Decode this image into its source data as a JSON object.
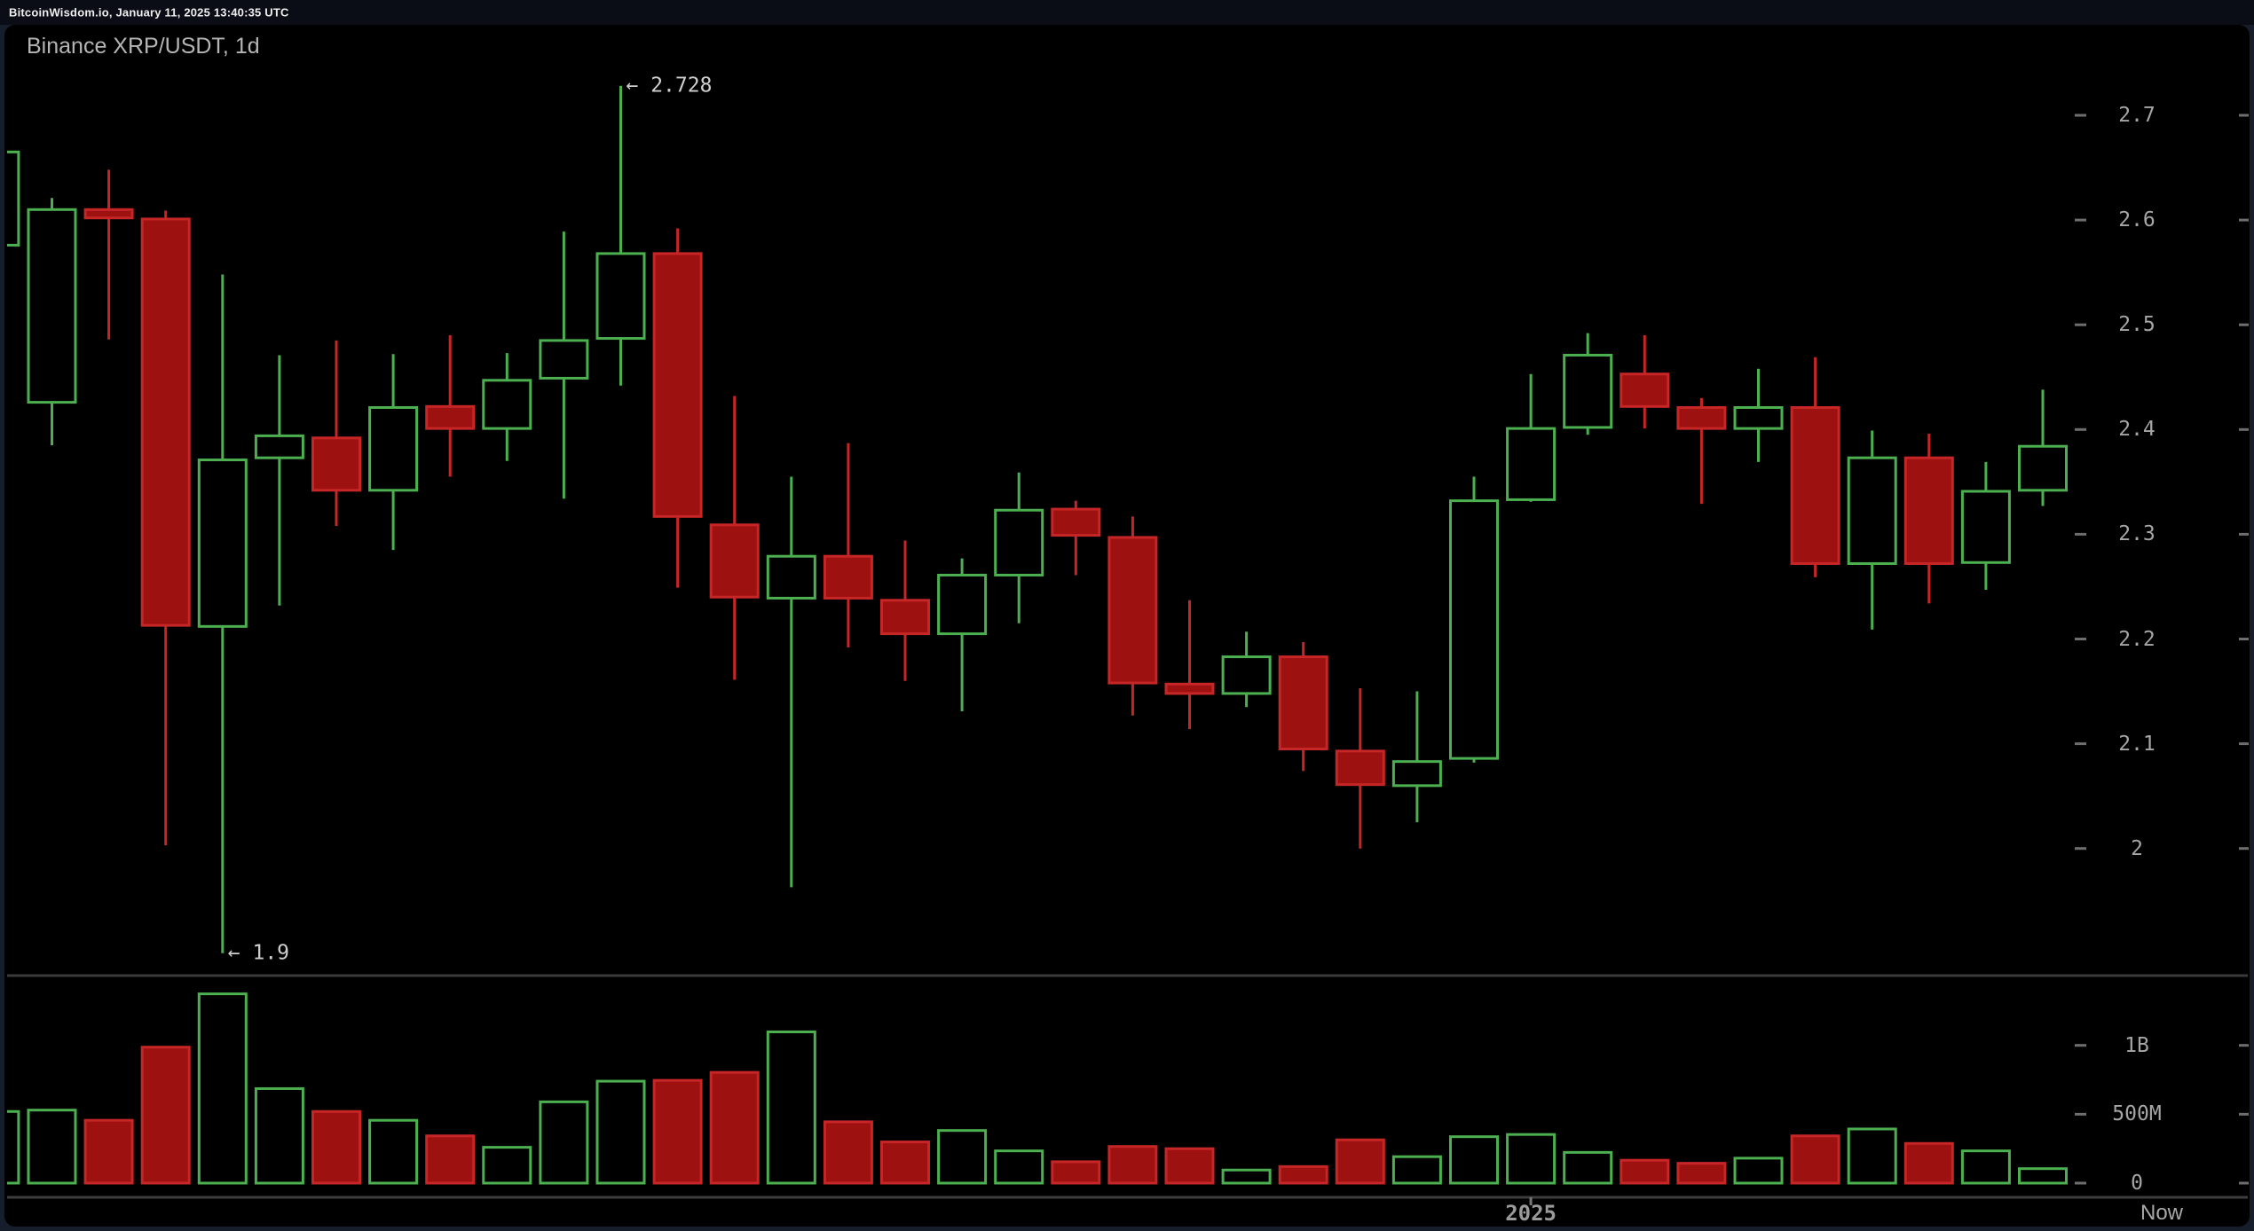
{
  "header": {
    "text": "BitcoinWisdom.io, January 11, 2025 13:40:35 UTC"
  },
  "chart_data": {
    "type": "candlestick",
    "title": "Binance XRP/USDT, 1d",
    "exchange": "Binance",
    "pair": "XRP/USDT",
    "interval": "1d",
    "legend_position": "none",
    "grid": false,
    "colors": {
      "up_stroke": "#4caf50",
      "down_fill": "#9e1111",
      "down_stroke": "#c62626",
      "background": "#000000",
      "axis_text": "#a6a6a6",
      "annotation_text": "#cfcfcf",
      "divider": "#3a3a3a"
    },
    "y_axis_price": {
      "ticks": [
        2.7,
        2.6,
        2.5,
        2.4,
        2.3,
        2.2,
        2.1,
        2
      ],
      "labels": [
        "2.7",
        "2.6",
        "2.5",
        "2.4",
        "2.3",
        "2.2",
        "2.1",
        "2"
      ],
      "range_shown": [
        1.86,
        2.78
      ]
    },
    "y_axis_volume": {
      "labels": [
        "1B",
        "500M",
        "0"
      ],
      "values_millions": [
        1000,
        500,
        0
      ]
    },
    "x_axis": {
      "year_label": "2025",
      "now_label": "Now",
      "year_tick_candle_index": 27
    },
    "annotations": [
      {
        "text": "← 2.728",
        "price": 2.728,
        "kind": "high"
      },
      {
        "text": "← 1.9",
        "price": 1.9,
        "kind": "low"
      }
    ],
    "volume_unit": "millions",
    "candles": [
      {
        "i": -1,
        "o": 2.576,
        "h": 2.67,
        "l": 2.522,
        "c": 2.665,
        "v": 520,
        "up": true
      },
      {
        "i": 0,
        "o": 2.426,
        "h": 2.621,
        "l": 2.385,
        "c": 2.61,
        "v": 530,
        "up": true
      },
      {
        "i": 1,
        "o": 2.61,
        "h": 2.648,
        "l": 2.486,
        "c": 2.602,
        "v": 456,
        "up": false
      },
      {
        "i": 2,
        "o": 2.601,
        "h": 2.609,
        "l": 2.003,
        "c": 2.213,
        "v": 987,
        "up": false
      },
      {
        "i": 3,
        "o": 2.212,
        "h": 2.548,
        "l": 1.9,
        "c": 2.371,
        "v": 1374,
        "up": true
      },
      {
        "i": 4,
        "o": 2.373,
        "h": 2.471,
        "l": 2.232,
        "c": 2.394,
        "v": 686,
        "up": true
      },
      {
        "i": 5,
        "o": 2.392,
        "h": 2.485,
        "l": 2.308,
        "c": 2.342,
        "v": 520,
        "up": false
      },
      {
        "i": 6,
        "o": 2.342,
        "h": 2.472,
        "l": 2.285,
        "c": 2.421,
        "v": 456,
        "up": true
      },
      {
        "i": 7,
        "o": 2.422,
        "h": 2.49,
        "l": 2.355,
        "c": 2.401,
        "v": 343,
        "up": false
      },
      {
        "i": 8,
        "o": 2.401,
        "h": 2.473,
        "l": 2.37,
        "c": 2.447,
        "v": 260,
        "up": true
      },
      {
        "i": 9,
        "o": 2.449,
        "h": 2.589,
        "l": 2.334,
        "c": 2.485,
        "v": 590,
        "up": true
      },
      {
        "i": 10,
        "o": 2.487,
        "h": 2.728,
        "l": 2.442,
        "c": 2.568,
        "v": 740,
        "up": true
      },
      {
        "i": 11,
        "o": 2.568,
        "h": 2.592,
        "l": 2.249,
        "c": 2.317,
        "v": 746,
        "up": false
      },
      {
        "i": 12,
        "o": 2.309,
        "h": 2.432,
        "l": 2.161,
        "c": 2.24,
        "v": 804,
        "up": false
      },
      {
        "i": 13,
        "o": 2.239,
        "h": 2.355,
        "l": 1.963,
        "c": 2.279,
        "v": 1098,
        "up": true
      },
      {
        "i": 14,
        "o": 2.279,
        "h": 2.387,
        "l": 2.192,
        "c": 2.239,
        "v": 445,
        "up": false
      },
      {
        "i": 15,
        "o": 2.237,
        "h": 2.294,
        "l": 2.16,
        "c": 2.205,
        "v": 299,
        "up": false
      },
      {
        "i": 16,
        "o": 2.205,
        "h": 2.277,
        "l": 2.131,
        "c": 2.261,
        "v": 382,
        "up": true
      },
      {
        "i": 17,
        "o": 2.261,
        "h": 2.359,
        "l": 2.215,
        "c": 2.323,
        "v": 234,
        "up": true
      },
      {
        "i": 18,
        "o": 2.324,
        "h": 2.332,
        "l": 2.261,
        "c": 2.299,
        "v": 155,
        "up": false
      },
      {
        "i": 19,
        "o": 2.297,
        "h": 2.317,
        "l": 2.127,
        "c": 2.158,
        "v": 266,
        "up": false
      },
      {
        "i": 20,
        "o": 2.157,
        "h": 2.237,
        "l": 2.114,
        "c": 2.148,
        "v": 250,
        "up": false
      },
      {
        "i": 21,
        "o": 2.148,
        "h": 2.207,
        "l": 2.135,
        "c": 2.183,
        "v": 95,
        "up": true
      },
      {
        "i": 22,
        "o": 2.183,
        "h": 2.197,
        "l": 2.074,
        "c": 2.095,
        "v": 120,
        "up": false
      },
      {
        "i": 23,
        "o": 2.093,
        "h": 2.153,
        "l": 2.0,
        "c": 2.061,
        "v": 314,
        "up": false
      },
      {
        "i": 24,
        "o": 2.06,
        "h": 2.15,
        "l": 2.025,
        "c": 2.083,
        "v": 192,
        "up": true
      },
      {
        "i": 25,
        "o": 2.086,
        "h": 2.355,
        "l": 2.082,
        "c": 2.332,
        "v": 337,
        "up": true
      },
      {
        "i": 26,
        "o": 2.333,
        "h": 2.453,
        "l": 2.331,
        "c": 2.401,
        "v": 353,
        "up": true
      },
      {
        "i": 27,
        "o": 2.402,
        "h": 2.492,
        "l": 2.395,
        "c": 2.471,
        "v": 223,
        "up": true
      },
      {
        "i": 28,
        "o": 2.453,
        "h": 2.49,
        "l": 2.401,
        "c": 2.422,
        "v": 166,
        "up": false
      },
      {
        "i": 29,
        "o": 2.421,
        "h": 2.43,
        "l": 2.329,
        "c": 2.401,
        "v": 144,
        "up": false
      },
      {
        "i": 30,
        "o": 2.401,
        "h": 2.458,
        "l": 2.369,
        "c": 2.421,
        "v": 181,
        "up": true
      },
      {
        "i": 31,
        "o": 2.421,
        "h": 2.469,
        "l": 2.259,
        "c": 2.272,
        "v": 343,
        "up": false
      },
      {
        "i": 32,
        "o": 2.272,
        "h": 2.399,
        "l": 2.209,
        "c": 2.373,
        "v": 393,
        "up": true
      },
      {
        "i": 33,
        "o": 2.373,
        "h": 2.396,
        "l": 2.234,
        "c": 2.272,
        "v": 288,
        "up": false
      },
      {
        "i": 34,
        "o": 2.273,
        "h": 2.369,
        "l": 2.247,
        "c": 2.341,
        "v": 234,
        "up": true
      },
      {
        "i": 35,
        "o": 2.342,
        "h": 2.438,
        "l": 2.327,
        "c": 2.384,
        "v": 105,
        "up": true
      }
    ]
  }
}
